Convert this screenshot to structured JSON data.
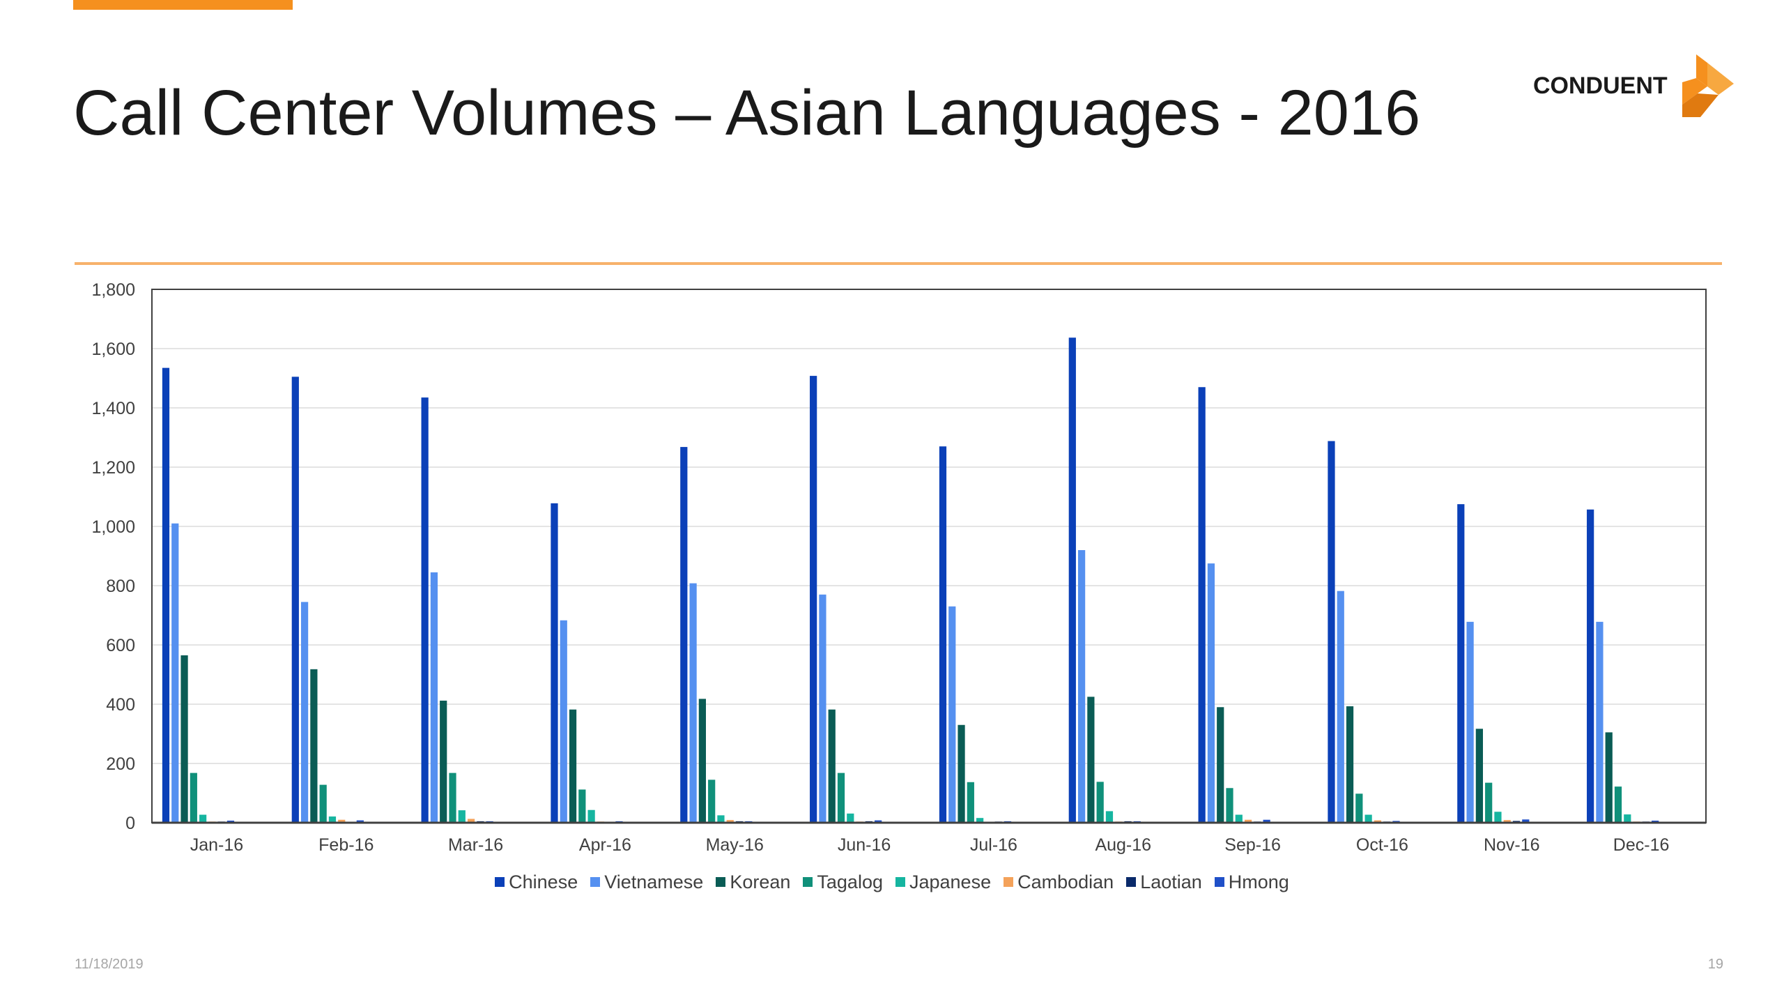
{
  "slide": {
    "title": "Call Center Volumes – Asian Languages - 2016",
    "logo_text": "CONDUENT",
    "date": "11/18/2019",
    "page_number": "19",
    "accent_color": "#f5901e"
  },
  "chart_data": {
    "type": "bar",
    "title": "",
    "xlabel": "",
    "ylabel": "",
    "ylim": [
      0,
      1800
    ],
    "yticks": [
      0,
      200,
      400,
      600,
      800,
      1000,
      1200,
      1400,
      1600,
      1800
    ],
    "ytick_labels": [
      "0",
      "200",
      "400",
      "600",
      "800",
      "1,000",
      "1,200",
      "1,400",
      "1,600",
      "1,800"
    ],
    "grid": true,
    "legend_position": "bottom",
    "categories": [
      "Jan-16",
      "Feb-16",
      "Mar-16",
      "Apr-16",
      "May-16",
      "Jun-16",
      "Jul-16",
      "Aug-16",
      "Sep-16",
      "Oct-16",
      "Nov-16",
      "Dec-16"
    ],
    "series": [
      {
        "name": "Chinese",
        "color": "#0b40b8",
        "values": [
          1535,
          1505,
          1435,
          1078,
          1268,
          1508,
          1270,
          1637,
          1470,
          1288,
          1075,
          1057
        ]
      },
      {
        "name": "Vietnamese",
        "color": "#5590f0",
        "values": [
          1010,
          745,
          845,
          683,
          808,
          770,
          730,
          920,
          875,
          782,
          678,
          678
        ]
      },
      {
        "name": "Korean",
        "color": "#0a5c55",
        "values": [
          565,
          518,
          412,
          382,
          418,
          382,
          330,
          425,
          390,
          393,
          317,
          305
        ]
      },
      {
        "name": "Tagalog",
        "color": "#10907a",
        "values": [
          168,
          128,
          168,
          112,
          145,
          168,
          137,
          138,
          117,
          98,
          135,
          122
        ]
      },
      {
        "name": "Japanese",
        "color": "#16b5a0",
        "values": [
          27,
          21,
          42,
          43,
          25,
          31,
          16,
          39,
          27,
          27,
          37,
          28
        ]
      },
      {
        "name": "Cambodian",
        "color": "#f4a25a",
        "values": [
          4,
          10,
          13,
          4,
          9,
          4,
          2,
          4,
          10,
          8,
          9,
          4
        ]
      },
      {
        "name": "Laotian",
        "color": "#0a2a6a",
        "values": [
          4,
          3,
          5,
          2,
          5,
          5,
          4,
          5,
          4,
          4,
          6,
          4
        ]
      },
      {
        "name": "Hmong",
        "color": "#2050c8",
        "values": [
          7,
          8,
          5,
          5,
          5,
          8,
          5,
          5,
          10,
          6,
          11,
          7
        ]
      }
    ]
  }
}
